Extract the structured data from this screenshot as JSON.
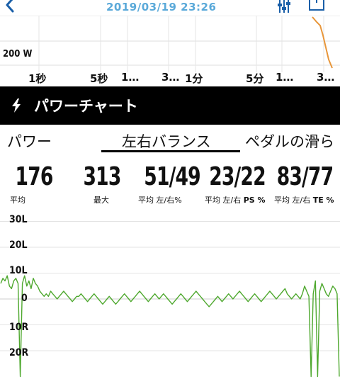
{
  "header": {
    "datetime": "2019/03/19 23:26"
  },
  "power_chart": {
    "y_label": "200 W",
    "time_ticks": [
      "1秒",
      "5秒",
      "1…",
      "3…",
      "1分",
      "5分",
      "1…",
      "3…"
    ],
    "line_color": "#e8963a"
  },
  "section": {
    "title": "パワーチャート",
    "icon": "lightning-bolt-icon"
  },
  "tabs": [
    {
      "label": "パワー",
      "selected": false
    },
    {
      "label": "左右バランス",
      "selected": true
    },
    {
      "label": "ペダルの滑ら",
      "selected": false
    }
  ],
  "metrics": [
    {
      "value": "176",
      "label": "平均"
    },
    {
      "value": "313",
      "label": "最大"
    },
    {
      "value": "51/49",
      "label": "平均 左/右%"
    },
    {
      "value": "23/22",
      "label_prefix": "平均 左/右 ",
      "label_bold": "PS %"
    },
    {
      "value": "83/77",
      "label_prefix": "平均 左/右 ",
      "label_bold": "TE %"
    }
  ],
  "chart_data": {
    "type": "line",
    "title": "",
    "xlabel": "",
    "ylabel": "",
    "y_ticks": [
      "30L",
      "20L",
      "10L",
      "0",
      "10R",
      "20R"
    ],
    "ylim": [
      -25,
      30
    ],
    "grid": true,
    "line_color": "#4ea82e",
    "series": [
      {
        "values": [
          6,
          8,
          7,
          9,
          5,
          4,
          7,
          8,
          6,
          -30,
          6,
          9,
          5,
          7,
          4,
          8,
          6,
          5,
          3,
          2,
          1,
          2,
          1,
          3,
          2,
          1,
          0,
          1,
          2,
          3,
          2,
          1,
          0,
          -1,
          0,
          1,
          1,
          2,
          1,
          0,
          -1,
          0,
          1,
          2,
          1,
          0,
          -1,
          -2,
          -1,
          0,
          1,
          0,
          -1,
          -2,
          -1,
          0,
          1,
          2,
          1,
          0,
          -1,
          0,
          1,
          2,
          3,
          2,
          1,
          0,
          -1,
          0,
          1,
          2,
          1,
          0,
          1,
          2,
          1,
          0,
          -1,
          -2,
          -1,
          0,
          1,
          2,
          1,
          0,
          -1,
          0,
          1,
          2,
          3,
          2,
          1,
          0,
          -1,
          -2,
          -3,
          -2,
          -1,
          0,
          1,
          0,
          -1,
          0,
          1,
          2,
          1,
          0,
          1,
          2,
          3,
          2,
          1,
          0,
          -1,
          0,
          1,
          2,
          1,
          0,
          -1,
          0,
          1,
          2,
          3,
          2,
          1,
          0,
          1,
          2,
          3,
          4,
          2,
          1,
          0,
          1,
          2,
          1,
          0,
          2,
          5,
          3,
          1,
          -30,
          2,
          7,
          -30,
          3,
          6,
          4,
          2,
          1,
          3,
          5,
          4,
          2,
          -30
        ]
      }
    ]
  }
}
